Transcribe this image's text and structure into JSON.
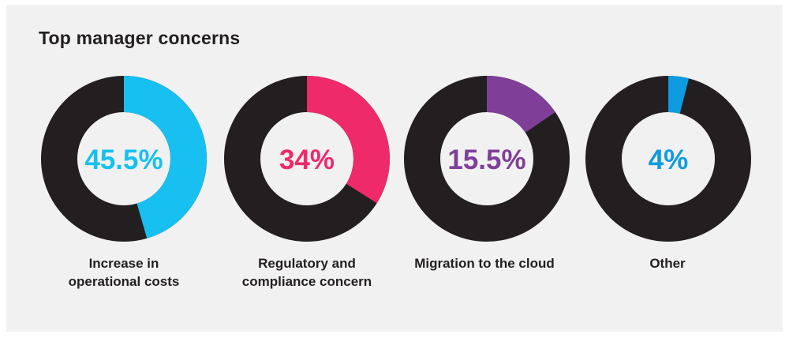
{
  "chart_data": {
    "type": "pie",
    "title": "Top manager concerns",
    "ring_color": "#231f20",
    "items": [
      {
        "label_line1": "Increase in",
        "label_line2": "operational costs",
        "value": 45.5,
        "display": "45.5%",
        "color": "#17c0f0"
      },
      {
        "label_line1": "Regulatory and",
        "label_line2": "compliance concern",
        "value": 34,
        "display": "34%",
        "color": "#ee2a6a"
      },
      {
        "label_line1": "Migration to the cloud",
        "label_line2": "",
        "value": 15.5,
        "display": "15.5%",
        "color": "#7f3f98"
      },
      {
        "label_line1": "Other",
        "label_line2": "",
        "value": 4,
        "display": "4%",
        "color": "#0e9be0"
      }
    ]
  }
}
